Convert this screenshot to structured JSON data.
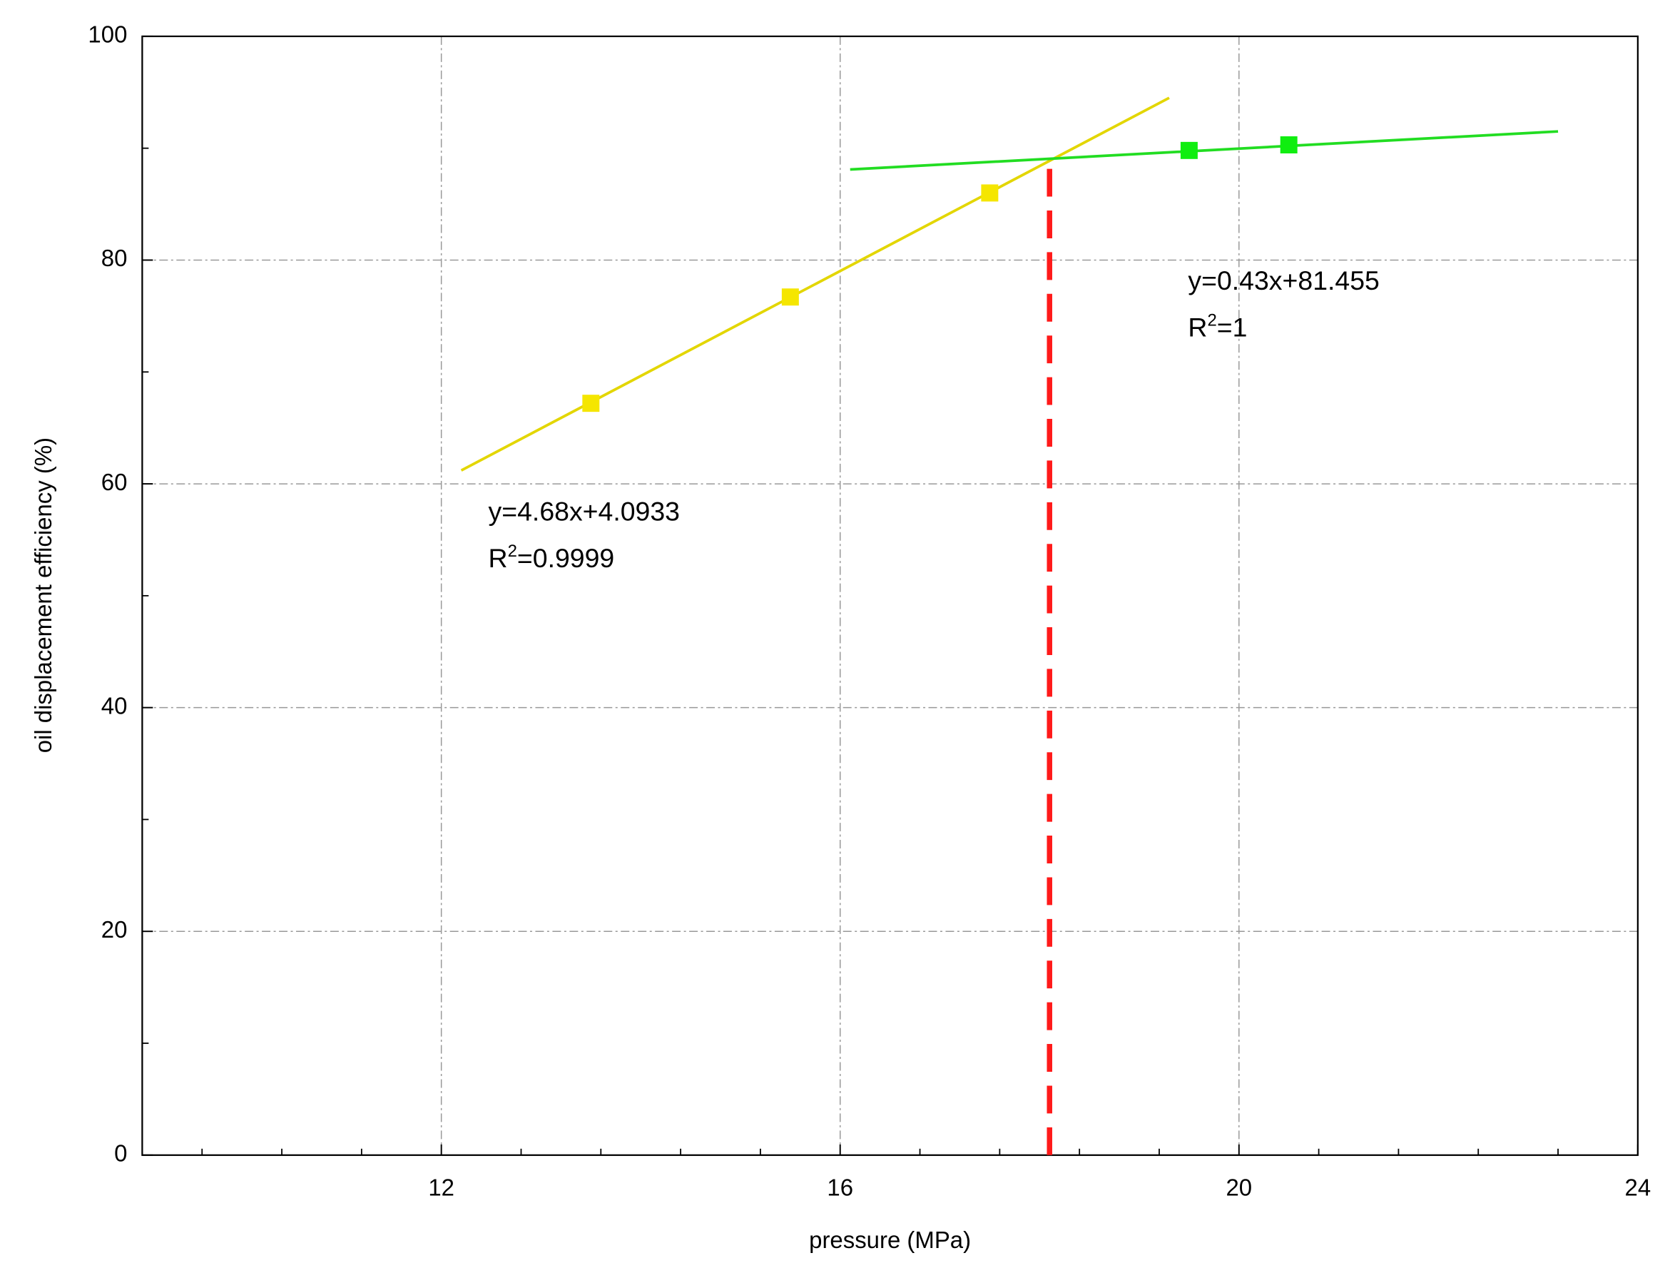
{
  "chart_data": {
    "type": "scatter",
    "xlabel": "pressure (MPa)",
    "ylabel": "oil displacement efficiency (%)",
    "xlim": [
      9,
      24
    ],
    "ylim": [
      0,
      100
    ],
    "xticks": [
      12,
      16,
      20,
      24
    ],
    "yticks": [
      0,
      20,
      40,
      60,
      80,
      100
    ],
    "xminorticks": [
      9.6,
      10.4,
      11.2,
      12.8,
      13.6,
      14.4,
      15.2,
      16.8,
      17.6,
      18.4,
      19.2,
      20.8,
      21.6,
      22.4,
      23.2
    ],
    "yminorticks": [
      10,
      30,
      50,
      70,
      90
    ],
    "grid": true,
    "series": [
      {
        "color": "#f5e600",
        "x": [
          13.5,
          15.5,
          17.5
        ],
        "values": [
          67.2,
          76.7,
          86.0
        ],
        "fit": {
          "color": "#e3d600",
          "x": [
            12.2,
            19.3
          ],
          "values": [
            61.2,
            94.5
          ]
        }
      },
      {
        "color": "#10ee10",
        "x": [
          19.5,
          20.5
        ],
        "values": [
          89.8,
          90.3
        ],
        "fit": {
          "color": "#22dd22",
          "x": [
            16.1,
            23.2
          ],
          "values": [
            88.1,
            91.5
          ]
        }
      }
    ],
    "reference_line": {
      "color": "#ff1a1a",
      "x": 18.1,
      "y": [
        0,
        89.2
      ]
    },
    "annotations": [
      {
        "equation": "y=4.68x+4.0933",
        "r2": {
          "base": "R",
          "sup": "2",
          "rest": "=0.9999"
        }
      },
      {
        "equation": "y=0.43x+81.455",
        "r2": {
          "base": "R",
          "sup": "2",
          "rest": "=1"
        }
      }
    ]
  }
}
